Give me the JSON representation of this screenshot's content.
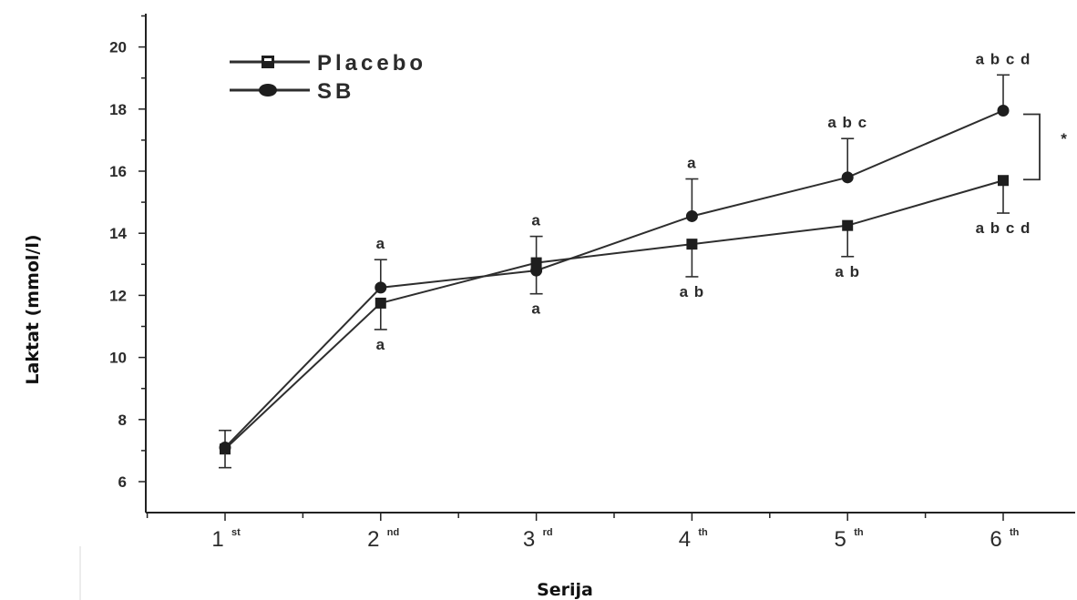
{
  "chart_data": {
    "type": "line",
    "xlabel": "Serija",
    "ylabel": "Laktat (mmol/l)",
    "ylim": [
      5,
      21
    ],
    "yticks": [
      6,
      8,
      10,
      12,
      14,
      16,
      18,
      20
    ],
    "categories": [
      {
        "main": "1",
        "sup": "st"
      },
      {
        "main": "2",
        "sup": "nd"
      },
      {
        "main": "3",
        "sup": "rd"
      },
      {
        "main": "4",
        "sup": "th"
      },
      {
        "main": "5",
        "sup": "th"
      },
      {
        "main": "6",
        "sup": "th"
      }
    ],
    "legend_position": "top-left",
    "series": [
      {
        "name": "Placebo",
        "marker": "square",
        "values": [
          7.05,
          11.75,
          13.05,
          13.65,
          14.25,
          15.7
        ],
        "error": [
          0.6,
          0.85,
          0.85,
          1.05,
          1.0,
          1.05
        ],
        "error_direction": [
          "up",
          "down",
          "up",
          "down",
          "down",
          "down"
        ],
        "sig_labels": [
          "",
          "a",
          "a",
          "a b",
          "a b",
          "a b c d"
        ],
        "sig_label_position": [
          "",
          "below",
          "above",
          "below",
          "below",
          "below"
        ]
      },
      {
        "name": "SB",
        "marker": "circle",
        "values": [
          7.1,
          12.25,
          12.8,
          14.55,
          15.8,
          17.95
        ],
        "error": [
          0.65,
          0.9,
          0.75,
          1.2,
          1.25,
          1.15
        ],
        "error_direction": [
          "down",
          "up",
          "down",
          "up",
          "up",
          "up"
        ],
        "sig_labels": [
          "",
          "a",
          "a",
          "a",
          "a b c",
          "a b c d"
        ],
        "sig_label_position": [
          "",
          "above",
          "below",
          "above",
          "above",
          "above"
        ]
      }
    ],
    "annotation": {
      "text": "*",
      "between": "6th"
    }
  }
}
